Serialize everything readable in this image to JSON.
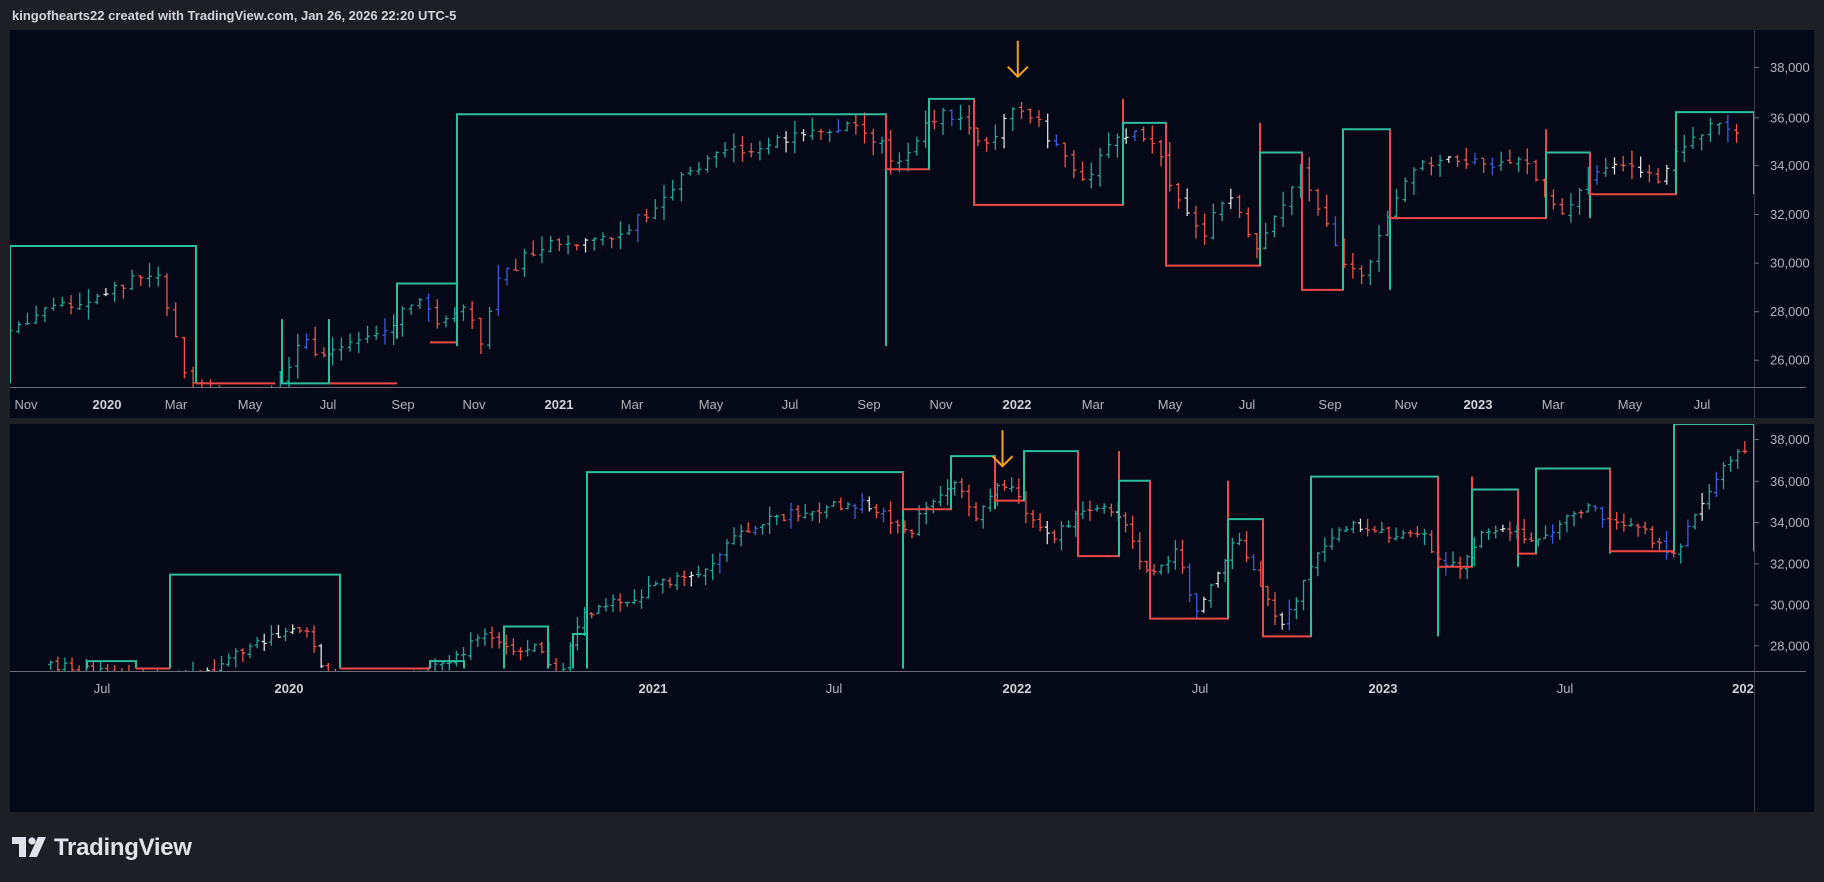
{
  "header": {
    "attribution": "kingofhearts22 created with TradingView.com, Jan 26, 2026 22:20 UTC-5"
  },
  "colors": {
    "background": "#050816",
    "frame": "#1e1f24",
    "up": "#26a69a",
    "down": "#ef5350",
    "neutral": "#e0e0e0",
    "blue": "#3b5bdb",
    "box_up": "#2ebd9e",
    "box_down": "#f04848",
    "arrow": "#f7a21b",
    "axis_text": "#b2b5be"
  },
  "logo": {
    "text": "TradingView",
    "icon": "tradingview-logo-icon"
  },
  "chart_data": [
    {
      "type": "line",
      "title": "",
      "x_tick_labels": [
        "Nov",
        "2020",
        "Mar",
        "May",
        "Jul",
        "Sep",
        "Nov",
        "2021",
        "Mar",
        "May",
        "Jul",
        "Sep",
        "Nov",
        "2022",
        "Mar",
        "May",
        "Jul",
        "Sep",
        "Nov",
        "2023",
        "Mar",
        "May",
        "Jul"
      ],
      "y_tick_labels": [
        "26,000",
        "28,000",
        "30,000",
        "32,000",
        "34,000",
        "36,000",
        "38,000"
      ],
      "ylim": [
        24700,
        39300
      ],
      "xlim": [
        "2019-10-15",
        "2023-08-15"
      ],
      "annotation": {
        "type": "arrow-down",
        "x": "2022-01-01",
        "y": 36600
      },
      "series": [
        {
          "values": [
            [
              "2019-10-15",
              26900
            ],
            [
              "2019-11-15",
              27800
            ],
            [
              "2019-12-15",
              28200
            ],
            [
              "2020-01-15",
              29000
            ],
            [
              "2020-02-10",
              29200
            ],
            [
              "2020-02-24",
              26800
            ],
            [
              "2020-03-05",
              25200
            ],
            [
              "2020-03-20",
              24400
            ],
            [
              "2020-04-20",
              23800
            ],
            [
              "2020-05-20",
              24900
            ],
            [
              "2020-06-05",
              26500
            ],
            [
              "2020-06-20",
              26200
            ],
            [
              "2020-07-15",
              26400
            ],
            [
              "2020-08-15",
              27200
            ],
            [
              "2020-09-10",
              28600
            ],
            [
              "2020-09-25",
              27200
            ],
            [
              "2020-10-15",
              28200
            ],
            [
              "2020-10-28",
              26500
            ],
            [
              "2020-11-10",
              29200
            ],
            [
              "2020-12-10",
              30300
            ],
            [
              "2021-01-10",
              30700
            ],
            [
              "2021-02-10",
              31000
            ],
            [
              "2021-03-10",
              31700
            ],
            [
              "2021-04-10",
              33500
            ],
            [
              "2021-05-10",
              34300
            ],
            [
              "2021-06-10",
              34600
            ],
            [
              "2021-07-10",
              35000
            ],
            [
              "2021-08-10",
              35300
            ],
            [
              "2021-09-05",
              35100
            ],
            [
              "2021-09-25",
              33800
            ],
            [
              "2021-10-15",
              35100
            ],
            [
              "2021-11-05",
              36100
            ],
            [
              "2021-11-25",
              35000
            ],
            [
              "2021-12-10",
              34800
            ],
            [
              "2022-01-01",
              36300
            ],
            [
              "2022-01-20",
              35300
            ],
            [
              "2022-02-10",
              34000
            ],
            [
              "2022-02-25",
              33200
            ],
            [
              "2022-03-20",
              34800
            ],
            [
              "2022-04-10",
              35200
            ],
            [
              "2022-04-25",
              34000
            ],
            [
              "2022-05-15",
              31800
            ],
            [
              "2022-05-30",
              31000
            ],
            [
              "2022-06-20",
              32800
            ],
            [
              "2022-07-10",
              30200
            ],
            [
              "2022-07-30",
              31800
            ],
            [
              "2022-08-15",
              33800
            ],
            [
              "2022-09-05",
              31500
            ],
            [
              "2022-09-20",
              29800
            ],
            [
              "2022-10-05",
              29200
            ],
            [
              "2022-10-20",
              31200
            ],
            [
              "2022-11-10",
              33400
            ],
            [
              "2022-12-10",
              34200
            ],
            [
              "2023-01-10",
              33700
            ],
            [
              "2023-02-10",
              34100
            ],
            [
              "2023-02-28",
              32300
            ],
            [
              "2023-03-15",
              31800
            ],
            [
              "2023-04-10",
              33700
            ],
            [
              "2023-05-10",
              34000
            ],
            [
              "2023-05-30",
              33000
            ],
            [
              "2023-06-15",
              34400
            ],
            [
              "2023-07-10",
              35300
            ],
            [
              "2023-08-01",
              35300
            ]
          ]
        }
      ]
    },
    {
      "type": "line",
      "title": "",
      "x_tick_labels": [
        "Jul",
        "2020",
        "2021",
        "Jul",
        "2022",
        "Jul",
        "2023",
        "Jul",
        "202"
      ],
      "y_tick_labels": [
        "28,000",
        "30,000",
        "32,000",
        "34,000",
        "36,000",
        "38,000"
      ],
      "ylim": [
        26900,
        39100
      ],
      "xlim": [
        "2019-05-01",
        "2024-01-10"
      ],
      "annotation": {
        "type": "arrow-down",
        "x": "2022-01-01",
        "y": 36800
      },
      "series": [
        {
          "values": [
            [
              "2019-06-10",
              27200
            ],
            [
              "2019-08-10",
              26700
            ],
            [
              "2019-10-10",
              26400
            ],
            [
              "2019-11-15",
              26900
            ],
            [
              "2019-12-15",
              27800
            ],
            [
              "2020-01-15",
              28600
            ],
            [
              "2020-02-15",
              29100
            ],
            [
              "2020-03-05",
              27000
            ],
            [
              "2020-04-15",
              24500
            ],
            [
              "2020-06-10",
              26800
            ],
            [
              "2020-07-15",
              27600
            ],
            [
              "2020-08-10",
              28800
            ],
            [
              "2020-09-05",
              27700
            ],
            [
              "2020-10-01",
              28200
            ],
            [
              "2020-10-20",
              26400
            ],
            [
              "2020-11-15",
              29700
            ],
            [
              "2020-12-15",
              30300
            ],
            [
              "2021-01-15",
              30800
            ],
            [
              "2021-02-15",
              31500
            ],
            [
              "2021-03-15",
              32000
            ],
            [
              "2021-04-15",
              33500
            ],
            [
              "2021-05-15",
              34300
            ],
            [
              "2021-06-15",
              34800
            ],
            [
              "2021-07-15",
              35000
            ],
            [
              "2021-08-15",
              35200
            ],
            [
              "2021-09-10",
              34600
            ],
            [
              "2021-09-30",
              33600
            ],
            [
              "2021-10-20",
              35300
            ],
            [
              "2021-11-15",
              36100
            ],
            [
              "2021-12-05",
              34500
            ],
            [
              "2022-01-01",
              36300
            ],
            [
              "2022-01-25",
              34800
            ],
            [
              "2022-02-15",
              33400
            ],
            [
              "2022-03-15",
              34600
            ],
            [
              "2022-04-10",
              35100
            ],
            [
              "2022-05-05",
              33700
            ],
            [
              "2022-05-25",
              31500
            ],
            [
              "2022-06-20",
              32800
            ],
            [
              "2022-07-10",
              30000
            ],
            [
              "2022-08-01",
              31800
            ],
            [
              "2022-08-20",
              33800
            ],
            [
              "2022-09-10",
              31200
            ],
            [
              "2022-09-30",
              29000
            ],
            [
              "2022-10-20",
              30800
            ],
            [
              "2022-11-15",
              33300
            ],
            [
              "2022-12-15",
              34100
            ],
            [
              "2023-01-15",
              33600
            ],
            [
              "2023-02-15",
              33900
            ],
            [
              "2023-03-05",
              32600
            ],
            [
              "2023-03-25",
              32000
            ],
            [
              "2023-04-20",
              33800
            ],
            [
              "2023-05-20",
              33800
            ],
            [
              "2023-06-10",
              33100
            ],
            [
              "2023-07-01",
              34200
            ],
            [
              "2023-08-01",
              35000
            ],
            [
              "2023-08-20",
              34400
            ],
            [
              "2023-09-15",
              34200
            ],
            [
              "2023-10-05",
              33300
            ],
            [
              "2023-10-25",
              32700
            ],
            [
              "2023-11-10",
              34400
            ],
            [
              "2023-11-30",
              36200
            ],
            [
              "2023-12-20",
              37600
            ],
            [
              "2024-01-05",
              38000
            ]
          ]
        }
      ]
    }
  ]
}
